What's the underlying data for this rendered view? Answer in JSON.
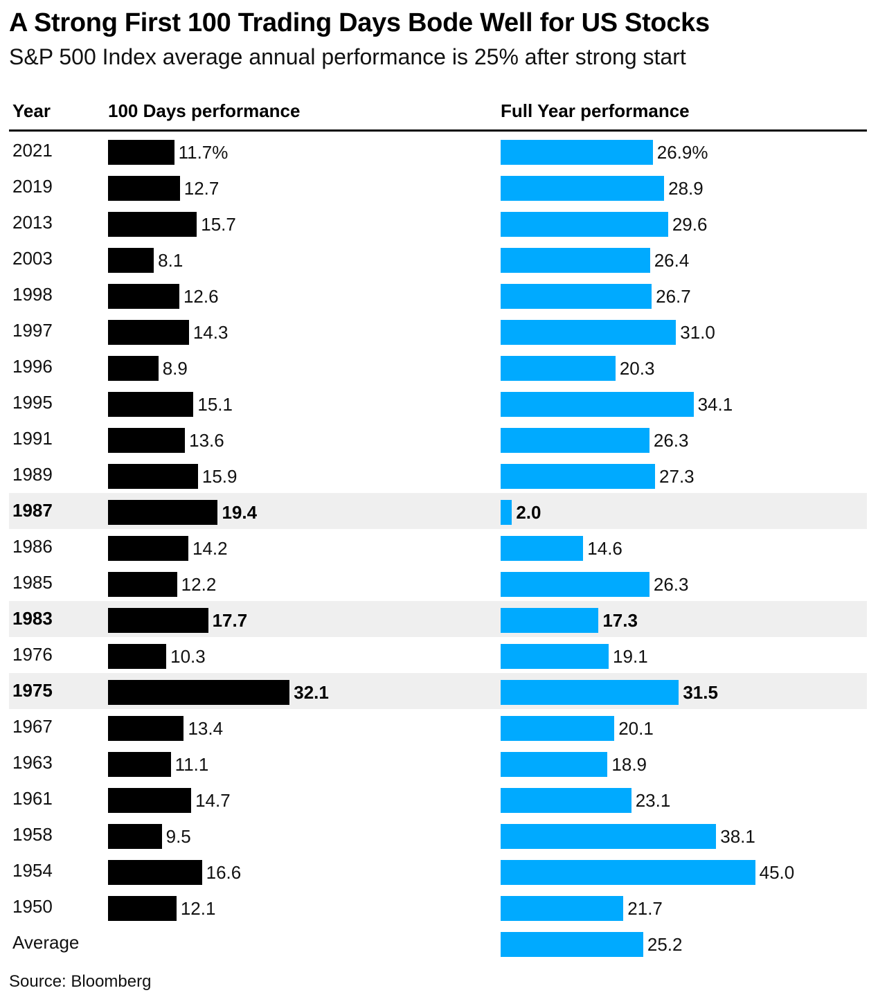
{
  "title": "A Strong First 100 Trading Days Bode Well for US Stocks",
  "subtitle": "S&P 500 Index average annual performance is 25% after strong start",
  "headers": {
    "year": "Year",
    "days100": "100 Days performance",
    "full_year": "Full Year performance"
  },
  "source": "Source: Bloomberg",
  "colors": {
    "days100_bar": "#000000",
    "full_year_bar": "#00aaff",
    "highlight_row": "#efefef"
  },
  "chart_data": {
    "type": "bar",
    "orientation": "horizontal",
    "categories": [
      "2021",
      "2019",
      "2013",
      "2003",
      "1998",
      "1997",
      "1996",
      "1995",
      "1991",
      "1989",
      "1987",
      "1986",
      "1985",
      "1983",
      "1976",
      "1975",
      "1967",
      "1963",
      "1961",
      "1958",
      "1954",
      "1950",
      "Average"
    ],
    "series": [
      {
        "name": "100 Days performance",
        "values": [
          11.7,
          12.7,
          15.7,
          8.1,
          12.6,
          14.3,
          8.9,
          15.1,
          13.6,
          15.9,
          19.4,
          14.2,
          12.2,
          17.7,
          10.3,
          32.1,
          13.4,
          11.1,
          14.7,
          9.5,
          16.6,
          12.1,
          null
        ],
        "labels": [
          "11.7%",
          "12.7",
          "15.7",
          "8.1",
          "12.6",
          "14.3",
          "8.9",
          "15.1",
          "13.6",
          "15.9",
          "19.4",
          "14.2",
          "12.2",
          "17.7",
          "10.3",
          "32.1",
          "13.4",
          "11.1",
          "14.7",
          "9.5",
          "16.6",
          "12.1",
          ""
        ]
      },
      {
        "name": "Full Year performance",
        "values": [
          26.9,
          28.9,
          29.6,
          26.4,
          26.7,
          31.0,
          20.3,
          34.1,
          26.3,
          27.3,
          2.0,
          14.6,
          26.3,
          17.3,
          19.1,
          31.5,
          20.1,
          18.9,
          23.1,
          38.1,
          45.0,
          21.7,
          25.2
        ],
        "labels": [
          "26.9%",
          "28.9",
          "29.6",
          "26.4",
          "26.7",
          "31.0",
          "20.3",
          "34.1",
          "26.3",
          "27.3",
          "2.0",
          "14.6",
          "26.3",
          "17.3",
          "19.1",
          "31.5",
          "20.1",
          "18.9",
          "23.1",
          "38.1",
          "45.0",
          "21.7",
          "25.2"
        ]
      }
    ],
    "highlighted": [
      "1987",
      "1983",
      "1975"
    ],
    "value_unit": "%",
    "grid": false,
    "legend": "none"
  }
}
